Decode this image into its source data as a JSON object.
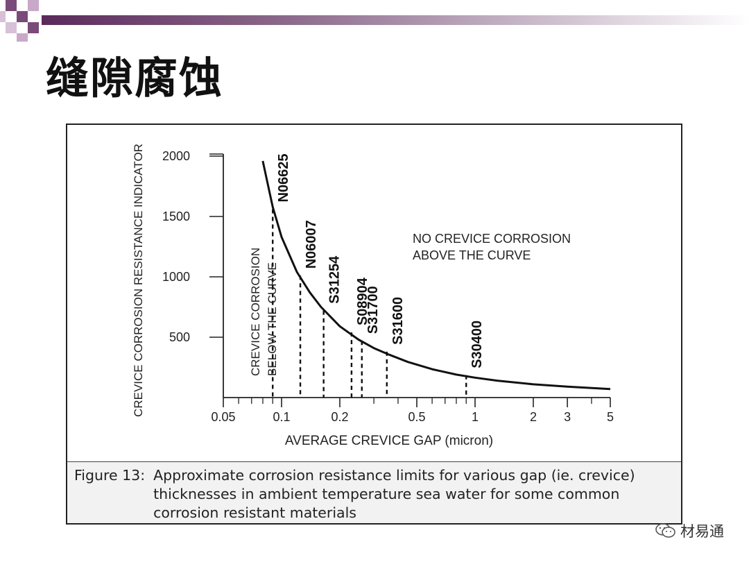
{
  "slide": {
    "title": "缝隙腐蚀",
    "watermark": "材易通"
  },
  "figure": {
    "caption_label": "Figure 13:",
    "caption_text": "Approximate corrosion resistance limits for various gap (ie. crevice) thicknesses in ambient temperature sea water for some common corrosion resistant materials"
  },
  "chart_data": {
    "type": "line",
    "title": "",
    "xlabel": "AVERAGE CREVICE GAP (micron)",
    "ylabel": "CREVICE CORROSION RESISTANCE INDICATOR",
    "xscale": "log",
    "xlim": [
      0.05,
      5
    ],
    "ylim": [
      0,
      2000
    ],
    "x_ticks": [
      0.05,
      0.1,
      0.2,
      0.5,
      1,
      2,
      3,
      5
    ],
    "x_tick_labels": [
      "0.05",
      "0.1",
      "0.2",
      "0.5",
      "1",
      "2",
      "3",
      "5"
    ],
    "y_ticks": [
      500,
      1000,
      1500,
      2000
    ],
    "y_tick_labels": [
      "500",
      "1000",
      "1500",
      "2000"
    ],
    "grid": false,
    "series": [
      {
        "x": [
          0.08,
          0.09,
          0.1,
          0.12,
          0.14,
          0.16,
          0.2,
          0.25,
          0.3,
          0.36,
          0.45,
          0.6,
          0.8,
          1.0,
          1.3,
          2.0,
          3.0,
          5.0
        ],
        "y": [
          1960,
          1580,
          1330,
          1040,
          870,
          750,
          590,
          480,
          410,
          355,
          295,
          235,
          190,
          165,
          140,
          110,
          90,
          70
        ]
      }
    ],
    "materials": [
      {
        "name": "N06625",
        "x": 0.09,
        "y": 1560
      },
      {
        "name": "N06007",
        "x": 0.125,
        "y": 1010
      },
      {
        "name": "S31254",
        "x": 0.165,
        "y": 720
      },
      {
        "name": "S08904",
        "x": 0.23,
        "y": 540
      },
      {
        "name": "S31700",
        "x": 0.26,
        "y": 470
      },
      {
        "name": "S31600",
        "x": 0.35,
        "y": 380
      },
      {
        "name": "S30400",
        "x": 0.9,
        "y": 185
      }
    ],
    "annotations": [
      "NO CREVICE CORROSION ABOVE THE CURVE",
      "CREVICE CORROSION BELOW THE CURVE"
    ],
    "annotation_lines": {
      "above": [
        "NO CREVICE CORROSION",
        "ABOVE THE CURVE"
      ],
      "below": [
        "CREVICE CORROSION",
        "BELOW THE CURVE"
      ]
    }
  }
}
